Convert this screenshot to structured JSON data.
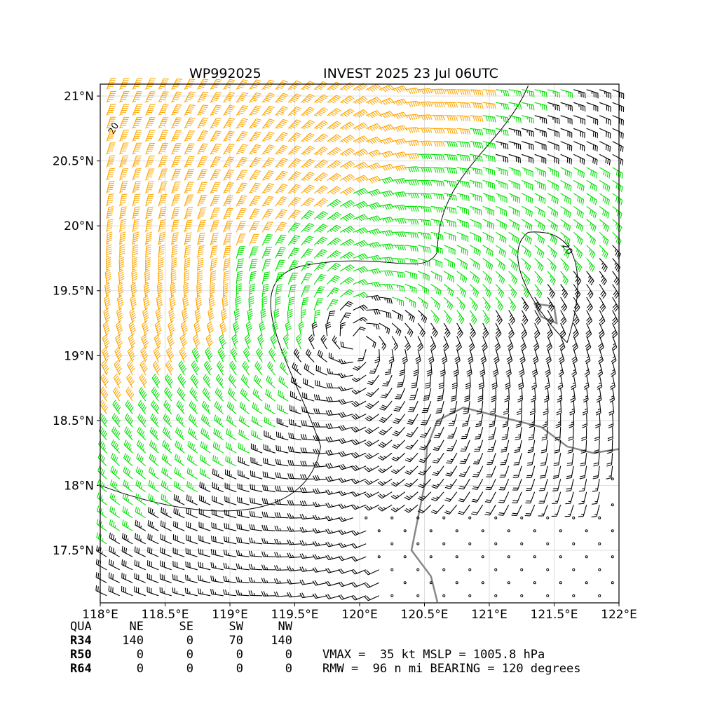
{
  "map": {
    "title_left": "WP992025",
    "title_right": "INVEST 2025 23 Jul 06UTC",
    "xlim": [
      118,
      122.0
    ],
    "ylim": [
      17.095,
      21.092
    ],
    "xticks": [
      {
        "value": 118,
        "label": "118°E"
      },
      {
        "value": 118.5,
        "label": "118.5°E"
      },
      {
        "value": 119,
        "label": "119°E"
      },
      {
        "value": 119.5,
        "label": "119.5°E"
      },
      {
        "value": 120,
        "label": "120°E"
      },
      {
        "value": 120.5,
        "label": "120.5°E"
      },
      {
        "value": 121,
        "label": "121°E"
      },
      {
        "value": 121.5,
        "label": "121.5°E"
      },
      {
        "value": 122,
        "label": "122°E"
      }
    ],
    "yticks": [
      {
        "value": 17.5,
        "label": "17.5°N"
      },
      {
        "value": 18,
        "label": "18°N"
      },
      {
        "value": 18.5,
        "label": "18.5°N"
      },
      {
        "value": 19,
        "label": "19°N"
      },
      {
        "value": 19.5,
        "label": "19.5°N"
      },
      {
        "value": 20,
        "label": "20°N"
      },
      {
        "value": 20.5,
        "label": "20.5°N"
      },
      {
        "value": 21,
        "label": "21°N"
      }
    ],
    "contour_label": "20"
  },
  "table": {
    "header": [
      "QUA",
      "NE",
      "SE",
      "SW",
      "NW"
    ],
    "rows": [
      [
        "R34",
        "140",
        "0",
        "70",
        "140"
      ],
      [
        "R50",
        "0",
        "0",
        "0",
        "0"
      ],
      [
        "R64",
        "0",
        "0",
        "0",
        "0"
      ]
    ]
  },
  "info": [
    "VMAX =  35 kt MSLP = 1005.8 hPa",
    "RMW =  96 n mi BEARING = 120 degrees"
  ]
}
